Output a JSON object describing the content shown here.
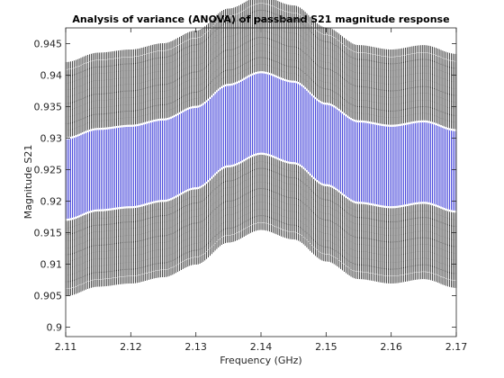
{
  "chart_data": {
    "type": "line",
    "title": "Analysis of variance (ANOVA) of passband S21 magnitude response",
    "xlabel": "Frequency (GHz)",
    "ylabel": "Magnitude S21",
    "xlim": [
      2.11,
      2.17
    ],
    "ylim": [
      0.8985,
      0.9475
    ],
    "xticks": [
      "2.11",
      "2.12",
      "2.13",
      "2.14",
      "2.15",
      "2.16",
      "2.17"
    ],
    "yticks": [
      "0.9",
      "0.905",
      "0.91",
      "0.915",
      "0.92",
      "0.925",
      "0.93",
      "0.935",
      "0.94",
      "0.945"
    ],
    "grid": false,
    "box": true,
    "x_start": 2.11,
    "x_end": 2.17,
    "samples": 231,
    "mean_curve": {
      "x": [
        2.11,
        2.115,
        2.12,
        2.125,
        2.13,
        2.135,
        2.14,
        2.145,
        2.15,
        2.155,
        2.16,
        2.165,
        2.17
      ],
      "y": [
        0.9235,
        0.925,
        0.9255,
        0.9265,
        0.9285,
        0.932,
        0.934,
        0.9325,
        0.929,
        0.9262,
        0.9255,
        0.9262,
        0.9248
      ]
    },
    "series": [
      {
        "color": "#0000cc",
        "low": -0.0063,
        "high": 0.0063
      },
      {
        "color": "#000000",
        "low": -0.0072,
        "high": 0.0072
      },
      {
        "color": "#000000",
        "low": -0.0083,
        "high": 0.0083
      },
      {
        "color": "#000000",
        "low": -0.0093,
        "high": 0.0093
      },
      {
        "color": "#000000",
        "low": -0.0104,
        "high": 0.0104
      },
      {
        "color": "#000000",
        "low": -0.0115,
        "high": 0.0115
      },
      {
        "color": "#000000",
        "low": -0.0125,
        "high": 0.0125
      },
      {
        "color": "#000000",
        "low": -0.0136,
        "high": 0.0136
      },
      {
        "color": "#000000",
        "low": -0.0147,
        "high": 0.0147
      },
      {
        "color": "#000000",
        "low": -0.0158,
        "high": 0.0158
      },
      {
        "color": "#000000",
        "low": -0.0168,
        "high": 0.0168
      },
      {
        "color": "#000000",
        "low": -0.018,
        "high": 0.018
      }
    ]
  }
}
